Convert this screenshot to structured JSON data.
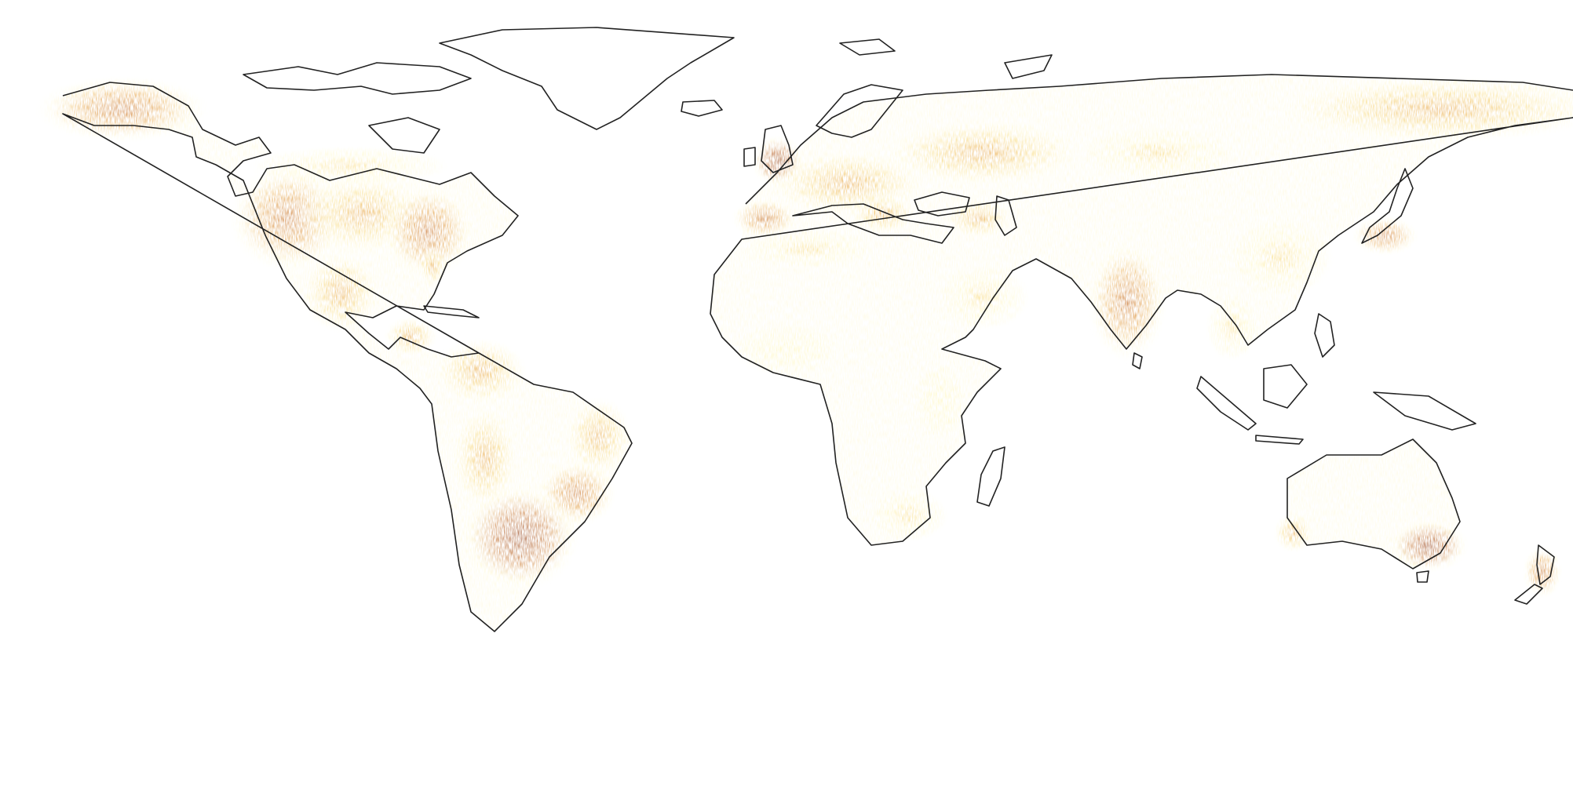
{
  "map": {
    "projection": "equirectangular",
    "colormap": [
      "#ffffff",
      "#fff7c0",
      "#f7d36a",
      "#e49a35",
      "#c0641b",
      "#8a3007"
    ],
    "coastline_color": "#222222",
    "hotspots": [
      {
        "region": "alaska",
        "lon": -152,
        "lat": 65,
        "rx": 13,
        "ry": 5,
        "intensity": 0.75
      },
      {
        "region": "western-us",
        "lon": -114,
        "lat": 40,
        "rx": 9,
        "ry": 8,
        "intensity": 0.7
      },
      {
        "region": "central-us",
        "lon": -97,
        "lat": 41,
        "rx": 10,
        "ry": 6,
        "intensity": 0.6
      },
      {
        "region": "eastern-us",
        "lon": -82,
        "lat": 37,
        "rx": 7,
        "ry": 7,
        "intensity": 0.75
      },
      {
        "region": "florida",
        "lon": -81,
        "lat": 29,
        "rx": 2,
        "ry": 3,
        "intensity": 0.6
      },
      {
        "region": "mexico",
        "lon": -102,
        "lat": 23,
        "rx": 6,
        "ry": 6,
        "intensity": 0.5
      },
      {
        "region": "central-america",
        "lon": -86,
        "lat": 13,
        "rx": 4,
        "ry": 3,
        "intensity": 0.55
      },
      {
        "region": "colombia-venezuela",
        "lon": -70,
        "lat": 5,
        "rx": 7,
        "ry": 5,
        "intensity": 0.6
      },
      {
        "region": "peru-bolivia",
        "lon": -69,
        "lat": -15,
        "rx": 5,
        "ry": 8,
        "intensity": 0.55
      },
      {
        "region": "brazil-east",
        "lon": -43,
        "lat": -10,
        "rx": 5,
        "ry": 6,
        "intensity": 0.5
      },
      {
        "region": "brazil-south",
        "lon": -48,
        "lat": -23,
        "rx": 6,
        "ry": 5,
        "intensity": 0.7
      },
      {
        "region": "argentina",
        "lon": -61,
        "lat": -33,
        "rx": 9,
        "ry": 8,
        "intensity": 0.95
      },
      {
        "region": "british-isles",
        "lon": -2,
        "lat": 53,
        "rx": 4,
        "ry": 4,
        "intensity": 0.9
      },
      {
        "region": "iberia",
        "lon": -5,
        "lat": 40,
        "rx": 5,
        "ry": 3,
        "intensity": 0.7
      },
      {
        "region": "central-europe",
        "lon": 14,
        "lat": 48,
        "rx": 12,
        "ry": 5,
        "intensity": 0.55
      },
      {
        "region": "balkans",
        "lon": 22,
        "lat": 41,
        "rx": 5,
        "ry": 3,
        "intensity": 0.6
      },
      {
        "region": "russia-west",
        "lon": 45,
        "lat": 55,
        "rx": 15,
        "ry": 5,
        "intensity": 0.55
      },
      {
        "region": "siberia",
        "lon": 85,
        "lat": 55,
        "rx": 12,
        "ry": 4,
        "intensity": 0.45
      },
      {
        "region": "east-siberia",
        "lon": 150,
        "lat": 65,
        "rx": 25,
        "ry": 5,
        "intensity": 0.55
      },
      {
        "region": "caucasus",
        "lon": 44,
        "lat": 40,
        "rx": 5,
        "ry": 3,
        "intensity": 0.5
      },
      {
        "region": "india",
        "lon": 78,
        "lat": 21,
        "rx": 6,
        "ry": 9,
        "intensity": 0.75
      },
      {
        "region": "china-east",
        "lon": 113,
        "lat": 31,
        "rx": 8,
        "ry": 6,
        "intensity": 0.45
      },
      {
        "region": "japan",
        "lon": 137,
        "lat": 36,
        "rx": 5,
        "ry": 3,
        "intensity": 0.8
      },
      {
        "region": "indochina",
        "lon": 102,
        "lat": 15,
        "rx": 4,
        "ry": 5,
        "intensity": 0.45
      },
      {
        "region": "southeast-australia",
        "lon": 147,
        "lat": -35,
        "rx": 6,
        "ry": 4,
        "intensity": 0.95
      },
      {
        "region": "southwest-australia",
        "lon": 116,
        "lat": -32,
        "rx": 3,
        "ry": 3,
        "intensity": 0.5
      },
      {
        "region": "new-zealand",
        "lon": 173,
        "lat": -41,
        "rx": 3,
        "ry": 4,
        "intensity": 0.8
      },
      {
        "region": "southern-africa",
        "lon": 28,
        "lat": -28,
        "rx": 6,
        "ry": 4,
        "intensity": 0.35
      },
      {
        "region": "west-africa",
        "lon": 0,
        "lat": 10,
        "rx": 8,
        "ry": 4,
        "intensity": 0.25
      },
      {
        "region": "east-africa",
        "lon": 35,
        "lat": -2,
        "rx": 4,
        "ry": 6,
        "intensity": 0.25
      },
      {
        "region": "north-africa",
        "lon": 5,
        "lat": 33,
        "rx": 10,
        "ry": 3,
        "intensity": 0.3
      },
      {
        "region": "arabia",
        "lon": 45,
        "lat": 22,
        "rx": 7,
        "ry": 5,
        "intensity": 0.3
      },
      {
        "region": "canada-south",
        "lon": -100,
        "lat": 52,
        "rx": 15,
        "ry": 3,
        "intensity": 0.35
      }
    ]
  }
}
